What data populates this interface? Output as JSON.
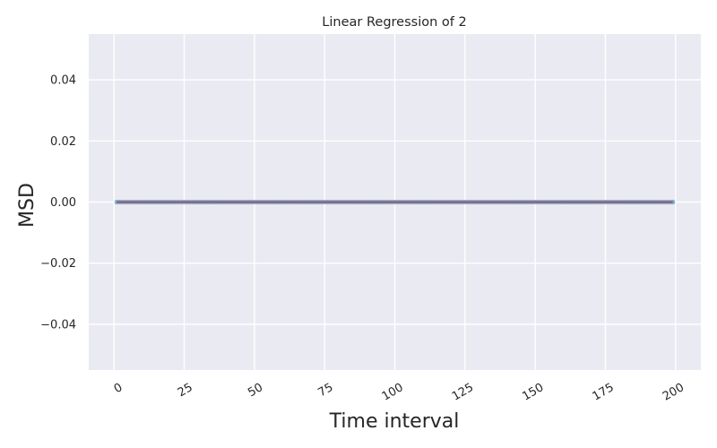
{
  "chart_data": {
    "type": "scatter",
    "title": "Linear Regression of 2",
    "xlabel": "Time interval",
    "ylabel": "MSD",
    "xlim": [
      -9,
      209
    ],
    "ylim": [
      -0.055,
      0.055
    ],
    "x_ticks": [
      0,
      25,
      50,
      75,
      100,
      125,
      150,
      175,
      200
    ],
    "y_ticks": [
      0.04,
      0.02,
      0.0,
      -0.02,
      -0.04
    ],
    "y_tick_labels": [
      "0.04",
      "0.02",
      "0.00",
      "−0.02",
      "−0.04"
    ],
    "x_tick_rotation": 30,
    "grid": true,
    "style": "seaborn-darkgrid",
    "series": [
      {
        "kind": "points",
        "x_start": 1,
        "x_end": 199,
        "x_step": 1,
        "y": 0.0,
        "color": "#5fa8b8"
      },
      {
        "kind": "regression-line",
        "x_start": 1,
        "x_end": 199,
        "slope": 0.0,
        "intercept": 0.0,
        "color": "#c0306a"
      }
    ],
    "colors": {
      "plot_background": "#eaeaf2",
      "grid": "#ffffff",
      "text": "#262626"
    }
  }
}
